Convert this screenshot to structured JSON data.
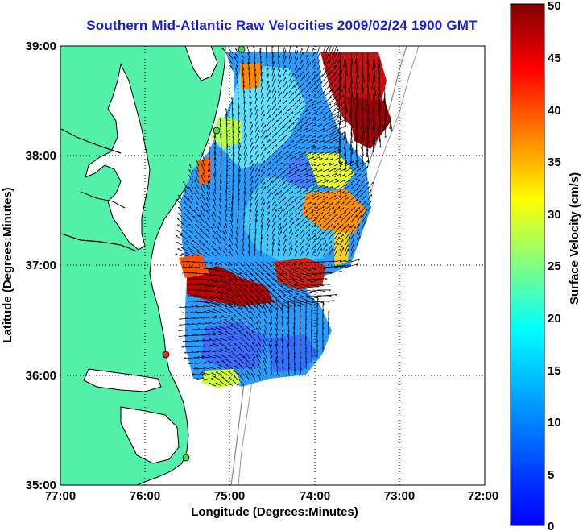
{
  "title": "Southern Mid-Atlantic Raw Velocities 2009/02/24 1900 GMT",
  "x_axis": {
    "label": "Longitude (Degrees:Minutes)",
    "ticks": [
      "77:00",
      "76:00",
      "75:00",
      "74:00",
      "73:00",
      "72:00"
    ]
  },
  "y_axis": {
    "label": "Latitude (Degrees:Minutes)",
    "ticks": [
      "39:00",
      "38:00",
      "37:00",
      "36:00",
      "35:00"
    ]
  },
  "colorbar": {
    "label": "Surface Velocity (cm/s)",
    "ticks": [
      "50",
      "45",
      "40",
      "35",
      "30",
      "25",
      "20",
      "15",
      "10",
      "5",
      "0"
    ],
    "min": 0,
    "max": 50
  },
  "colors": {
    "land": "#52f0a8",
    "ocean": "#ffffff",
    "title": "#1a1adc",
    "station_green": "#3ee04a",
    "station_red": "#ff2020"
  },
  "map": {
    "lon_range": [
      -77,
      -72
    ],
    "lat_range": [
      35,
      39
    ],
    "grid": "dotted"
  }
}
